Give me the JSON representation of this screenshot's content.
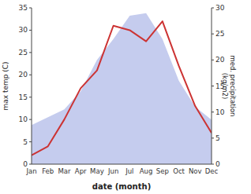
{
  "chart_data": {
    "type": "line",
    "categories": [
      "Jan",
      "Feb",
      "Mar",
      "Apr",
      "May",
      "Jun",
      "Jul",
      "Aug",
      "Sep",
      "Oct",
      "Nov",
      "Dec"
    ],
    "series": [
      {
        "type": "area",
        "axis": "y2",
        "color": "#c5ccee",
        "values": [
          7.5,
          9.0,
          10.5,
          14.0,
          20.0,
          24.0,
          28.5,
          29.0,
          24.0,
          16.0,
          11.0,
          8.5
        ]
      },
      {
        "type": "line",
        "color": "#cc3333",
        "values": [
          2.0,
          4.0,
          10.0,
          17.0,
          21.0,
          31.0,
          30.0,
          27.5,
          32.0,
          22.0,
          13.0,
          7.0
        ]
      }
    ],
    "xlabel": "date (month)",
    "ylabel": "max temp (C)",
    "y2label": "med. precipitation\n(kg/m2)",
    "ylim": [
      0,
      35
    ],
    "yticks": [
      0,
      5,
      10,
      15,
      20,
      25,
      30,
      35
    ],
    "y2lim": [
      0,
      30
    ],
    "y2ticks": [
      0,
      5,
      10,
      15,
      20,
      25,
      30
    ],
    "grid": false
  }
}
